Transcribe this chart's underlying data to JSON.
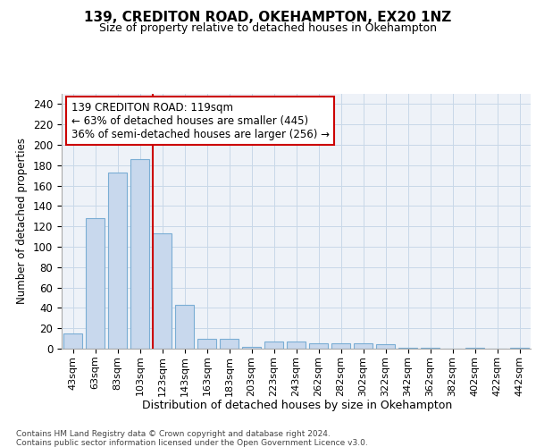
{
  "title1": "139, CREDITON ROAD, OKEHAMPTON, EX20 1NZ",
  "title2": "Size of property relative to detached houses in Okehampton",
  "xlabel": "Distribution of detached houses by size in Okehampton",
  "ylabel": "Number of detached properties",
  "categories": [
    "43sqm",
    "63sqm",
    "83sqm",
    "103sqm",
    "123sqm",
    "143sqm",
    "163sqm",
    "183sqm",
    "203sqm",
    "223sqm",
    "243sqm",
    "262sqm",
    "282sqm",
    "302sqm",
    "322sqm",
    "342sqm",
    "362sqm",
    "382sqm",
    "402sqm",
    "422sqm",
    "442sqm"
  ],
  "values": [
    15,
    128,
    173,
    186,
    113,
    43,
    10,
    10,
    2,
    7,
    7,
    5,
    5,
    5,
    4,
    1,
    1,
    0,
    1,
    0,
    1
  ],
  "bar_color": "#c8d8ed",
  "bar_edge_color": "#7aadd4",
  "bar_width": 0.85,
  "grid_color": "#c8d8e8",
  "bg_color": "#eef2f8",
  "annotation_box_color": "#ffffff",
  "annotation_box_edge": "#cc0000",
  "annotation_line1": "139 CREDITON ROAD: 119sqm",
  "annotation_line2": "← 63% of detached houses are smaller (445)",
  "annotation_line3": "36% of semi-detached houses are larger (256) →",
  "vline_color": "#cc0000",
  "ylim": [
    0,
    250
  ],
  "yticks": [
    0,
    20,
    40,
    60,
    80,
    100,
    120,
    140,
    160,
    180,
    200,
    220,
    240
  ],
  "footer1": "Contains HM Land Registry data © Crown copyright and database right 2024.",
  "footer2": "Contains public sector information licensed under the Open Government Licence v3.0."
}
